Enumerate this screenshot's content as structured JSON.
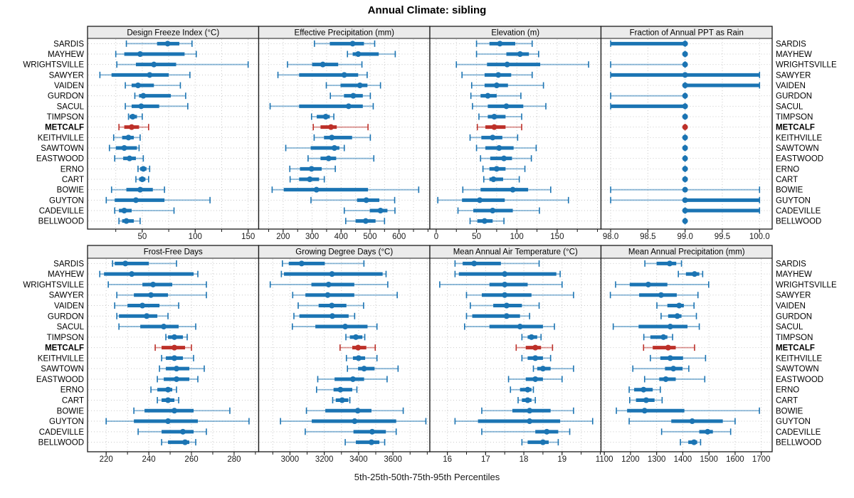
{
  "title": "Annual Climate: sibling",
  "footer": "5th-25th-50th-75th-95th Percentiles",
  "colors": {
    "series": "#1b74b3",
    "highlight": "#bd3029",
    "grid": "#c9c9c9",
    "header_bg": "#ebebeb",
    "border": "#1a1a1a",
    "tick_text": "#1a1a1a"
  },
  "stations": [
    "SARDIS",
    "MAYHEW",
    "WRIGHTSVILLE",
    "SAWYER",
    "VAIDEN",
    "GURDON",
    "SACUL",
    "TIMPSON",
    "METCALF",
    "KEITHVILLE",
    "SAWTOWN",
    "EASTWOOD",
    "ERNO",
    "CART",
    "BOWIE",
    "GUYTON",
    "CADEVILLE",
    "BELLWOOD"
  ],
  "highlight_station": "METCALF",
  "percentile_labels": [
    "5th",
    "25th",
    "50th",
    "75th",
    "95th"
  ],
  "chart_data": [
    {
      "type": "dotplot-percentiles",
      "id": "design-freeze-index",
      "title": "Design Freeze Index (°C)",
      "xlim": [
        -1,
        159.3
      ],
      "ticks": [
        50,
        100,
        150
      ],
      "tick_labels": [
        "50",
        "100",
        "150"
      ],
      "grid": [
        25,
        50,
        75,
        100,
        125,
        150
      ],
      "values": [
        [
          35,
          64,
          74,
          85,
          97
        ],
        [
          25,
          33,
          48,
          90,
          101
        ],
        [
          26,
          44,
          61,
          82,
          150
        ],
        [
          10,
          21,
          57,
          75,
          95
        ],
        [
          34,
          40,
          46,
          61,
          86
        ],
        [
          43,
          47,
          51,
          77,
          91
        ],
        [
          34,
          40,
          49,
          66,
          93
        ],
        [
          37,
          38,
          41,
          45,
          50
        ],
        [
          28,
          33,
          40,
          47,
          56
        ],
        [
          23,
          31,
          37,
          42,
          48
        ],
        [
          19,
          25,
          33,
          45,
          47
        ],
        [
          24,
          32,
          38,
          44,
          51
        ],
        [
          46,
          48,
          51,
          54,
          57
        ],
        [
          44,
          47,
          50,
          53,
          56
        ],
        [
          21,
          35,
          48,
          60,
          71
        ],
        [
          16,
          24,
          44,
          71,
          114
        ],
        [
          24,
          28,
          33,
          40,
          80
        ],
        [
          28,
          31,
          35,
          42,
          48
        ]
      ]
    },
    {
      "type": "dotplot-percentiles",
      "id": "effective-precipitation",
      "title": "Effective Precipitation (mm)",
      "xlim": [
        118,
        704
      ],
      "ticks": [
        200,
        300,
        400,
        500,
        600
      ],
      "tick_labels": [
        "200",
        "300",
        "400",
        "500",
        "600"
      ],
      "grid": [
        150,
        200,
        250,
        300,
        350,
        400,
        450,
        500,
        550,
        600,
        650,
        700
      ],
      "values": [
        [
          308,
          361,
          440,
          479,
          516
        ],
        [
          422,
          440,
          459,
          530,
          587
        ],
        [
          215,
          300,
          337,
          390,
          472
        ],
        [
          182,
          255,
          411,
          459,
          490
        ],
        [
          349,
          398,
          465,
          491,
          536
        ],
        [
          363,
          410,
          442,
          475,
          501
        ],
        [
          155,
          255,
          426,
          475,
          511
        ],
        [
          298,
          316,
          347,
          361,
          375
        ],
        [
          304,
          329,
          365,
          385,
          493
        ],
        [
          307,
          341,
          368,
          438,
          501
        ],
        [
          209,
          295,
          377,
          394,
          411
        ],
        [
          286,
          329,
          357,
          383,
          513
        ],
        [
          223,
          258,
          298,
          333,
          380
        ],
        [
          224,
          255,
          292,
          324,
          342
        ],
        [
          162,
          202,
          315,
          493,
          668
        ],
        [
          296,
          455,
          487,
          532,
          585
        ],
        [
          411,
          499,
          536,
          560,
          586
        ],
        [
          416,
          450,
          485,
          519,
          550
        ]
      ]
    },
    {
      "type": "dotplot-percentiles",
      "id": "elevation",
      "title": "Elevation (m)",
      "xlim": [
        -7,
        203.5
      ],
      "ticks": [
        0,
        50,
        100,
        150
      ],
      "tick_labels": [
        "0",
        "50",
        "100",
        "150"
      ],
      "grid": [
        0,
        25,
        50,
        75,
        100,
        125,
        150,
        175,
        200
      ],
      "values": [
        [
          50,
          66,
          79,
          98,
          119
        ],
        [
          50,
          87,
          104,
          115,
          127
        ],
        [
          25,
          63,
          88,
          129,
          189
        ],
        [
          32,
          60,
          77,
          93,
          119
        ],
        [
          44,
          60,
          75,
          89,
          133
        ],
        [
          43,
          55,
          64,
          75,
          105
        ],
        [
          45,
          64,
          87,
          108,
          136
        ],
        [
          53,
          64,
          72,
          86,
          106
        ],
        [
          51,
          61,
          72,
          86,
          106
        ],
        [
          42,
          56,
          70,
          82,
          101
        ],
        [
          50,
          61,
          78,
          96,
          124
        ],
        [
          55,
          67,
          84,
          94,
          118
        ],
        [
          58,
          66,
          75,
          86,
          110
        ],
        [
          59,
          66,
          71,
          83,
          103
        ],
        [
          33,
          55,
          95,
          114,
          142
        ],
        [
          2,
          32,
          54,
          85,
          164
        ],
        [
          27,
          46,
          70,
          95,
          128
        ],
        [
          42,
          51,
          60,
          70,
          84
        ]
      ]
    },
    {
      "type": "dotplot-percentiles",
      "id": "fraction-ppt-rain",
      "title": "Fraction of Annual PPT as Rain",
      "xlim": [
        97.88,
        100.16
      ],
      "ticks": [
        98.0,
        98.5,
        99.0,
        99.5,
        100.0
      ],
      "tick_labels": [
        "98.0",
        "98.5",
        "99.0",
        "99.5",
        "100.0"
      ],
      "grid": [
        98.0,
        98.5,
        99.0,
        99.5,
        100.0
      ],
      "values": [
        [
          98,
          98,
          99,
          99,
          99
        ],
        [
          99,
          99,
          99,
          99,
          99
        ],
        [
          98,
          99,
          99,
          99,
          99
        ],
        [
          98,
          98,
          99,
          100,
          100
        ],
        [
          99,
          99,
          99,
          100,
          100
        ],
        [
          98,
          99,
          99,
          99,
          99
        ],
        [
          98,
          98,
          99,
          99,
          99
        ],
        [
          99,
          99,
          99,
          99,
          99
        ],
        [
          99,
          99,
          99,
          99,
          99
        ],
        [
          99,
          99,
          99,
          99,
          99
        ],
        [
          99,
          99,
          99,
          99,
          99
        ],
        [
          99,
          99,
          99,
          99,
          99
        ],
        [
          99,
          99,
          99,
          99,
          99
        ],
        [
          99,
          99,
          99,
          99,
          99
        ],
        [
          98,
          99,
          99,
          99,
          100
        ],
        [
          98,
          99,
          99,
          100,
          100
        ],
        [
          99,
          99,
          99,
          100,
          100
        ],
        [
          99,
          99,
          99,
          99,
          99
        ]
      ]
    },
    {
      "type": "dotplot-percentiles",
      "id": "frost-free-days",
      "title": "Frost-Free Days",
      "xlim": [
        211.6,
        291.2
      ],
      "ticks": [
        220,
        240,
        260,
        280
      ],
      "tick_labels": [
        "220",
        "240",
        "260",
        "280"
      ],
      "grid": [
        220,
        230,
        240,
        250,
        260,
        270,
        280,
        290
      ],
      "values": [
        [
          223,
          224,
          229,
          240,
          253
        ],
        [
          217,
          219,
          232,
          261,
          263
        ],
        [
          221,
          237,
          242,
          251,
          267
        ],
        [
          225,
          233,
          241,
          249,
          267
        ],
        [
          224,
          230,
          237,
          245,
          254
        ],
        [
          225,
          226,
          239,
          244,
          249
        ],
        [
          226,
          236,
          247,
          254,
          262
        ],
        [
          248,
          249,
          252,
          256,
          258
        ],
        [
          243,
          246,
          252,
          257,
          260
        ],
        [
          246,
          248,
          252,
          256,
          261
        ],
        [
          245,
          248,
          253,
          259,
          266
        ],
        [
          244,
          247,
          253,
          259,
          263
        ],
        [
          241,
          244,
          249,
          251,
          253
        ],
        [
          244,
          246,
          249,
          252,
          254
        ],
        [
          233,
          238,
          252,
          261,
          278
        ],
        [
          220,
          233,
          249,
          263,
          287
        ],
        [
          235,
          246,
          256,
          261,
          267
        ],
        [
          246,
          249,
          257,
          259,
          262
        ]
      ]
    },
    {
      "type": "dotplot-percentiles",
      "id": "growing-degree-days",
      "title": "Growing Degree Days (°C)",
      "xlim": [
        2822,
        3811
      ],
      "ticks": [
        3000,
        3200,
        3400,
        3600
      ],
      "tick_labels": [
        "3000",
        "3200",
        "3400",
        "3600"
      ],
      "grid": [
        2900,
        3000,
        3100,
        3200,
        3300,
        3400,
        3500,
        3600,
        3700,
        3800
      ],
      "values": [
        [
          2956,
          2993,
          3068,
          3203,
          3431
        ],
        [
          2950,
          2965,
          3245,
          3540,
          3560
        ],
        [
          2885,
          3125,
          3225,
          3375,
          3570
        ],
        [
          3016,
          3090,
          3220,
          3375,
          3625
        ],
        [
          3048,
          3167,
          3244,
          3329,
          3429
        ],
        [
          3023,
          3055,
          3247,
          3342,
          3377
        ],
        [
          3014,
          3148,
          3322,
          3452,
          3507
        ],
        [
          3326,
          3349,
          3384,
          3422,
          3436
        ],
        [
          3292,
          3363,
          3397,
          3445,
          3497
        ],
        [
          3329,
          3367,
          3400,
          3438,
          3507
        ],
        [
          3335,
          3397,
          3432,
          3493,
          3630
        ],
        [
          3162,
          3260,
          3367,
          3432,
          3566
        ],
        [
          3155,
          3254,
          3294,
          3363,
          3390
        ],
        [
          3249,
          3267,
          3304,
          3340,
          3349
        ],
        [
          3096,
          3206,
          3395,
          3475,
          3660
        ],
        [
          2945,
          3127,
          3377,
          3619,
          3792
        ],
        [
          3089,
          3370,
          3479,
          3559,
          3619
        ],
        [
          3322,
          3384,
          3475,
          3521,
          3552
        ]
      ]
    },
    {
      "type": "dotplot-percentiles",
      "id": "mean-annual-air-temperature",
      "title": "Mean Annual Air Temperature (°C)",
      "xlim": [
        15.56,
        20.0
      ],
      "ticks": [
        16,
        17,
        18,
        19
      ],
      "tick_labels": [
        "16",
        "17",
        "18",
        "19"
      ],
      "grid": [
        16,
        16.5,
        17,
        17.5,
        18,
        18.5,
        19,
        19.5,
        20
      ],
      "values": [
        [
          16.2,
          16.4,
          16.7,
          17.4,
          18.4
        ],
        [
          16.2,
          16.3,
          17.5,
          18.85,
          18.95
        ],
        [
          15.8,
          17.1,
          17.5,
          18.1,
          19.0
        ],
        [
          16.5,
          16.9,
          17.5,
          18.2,
          19.3
        ],
        [
          16.6,
          17.2,
          17.55,
          17.95,
          18.4
        ],
        [
          16.5,
          16.65,
          17.55,
          17.9,
          18.15
        ],
        [
          16.45,
          17.1,
          17.9,
          18.5,
          18.8
        ],
        [
          17.95,
          18.1,
          18.2,
          18.35,
          18.45
        ],
        [
          17.8,
          18.05,
          18.3,
          18.45,
          18.75
        ],
        [
          17.95,
          18.1,
          18.3,
          18.5,
          18.7
        ],
        [
          18.25,
          18.35,
          18.5,
          18.7,
          19.3
        ],
        [
          17.6,
          18.05,
          18.3,
          18.5,
          19.0
        ],
        [
          17.65,
          17.9,
          18.1,
          18.2,
          18.25
        ],
        [
          17.85,
          17.95,
          18.1,
          18.2,
          18.3
        ],
        [
          16.9,
          17.7,
          18.15,
          18.7,
          19.3
        ],
        [
          16.2,
          16.8,
          18.15,
          18.95,
          19.8
        ],
        [
          16.9,
          18.3,
          18.6,
          18.9,
          19.2
        ],
        [
          17.95,
          18.1,
          18.5,
          18.65,
          18.9
        ]
      ]
    },
    {
      "type": "dotplot-percentiles",
      "id": "mean-annual-precipitation",
      "title": "Mean Annual Precipitation (mm)",
      "xlim": [
        1090,
        1739
      ],
      "ticks": [
        1100,
        1200,
        1300,
        1400,
        1500,
        1600,
        1700
      ],
      "tick_labels": [
        "1100",
        "1200",
        "1300",
        "1400",
        "1500",
        "1600",
        "1700"
      ],
      "grid": [
        1100,
        1200,
        1300,
        1400,
        1500,
        1600,
        1700
      ],
      "values": [
        [
          1255,
          1300,
          1350,
          1375,
          1395
        ],
        [
          1383,
          1412,
          1445,
          1463,
          1476
        ],
        [
          1143,
          1197,
          1268,
          1341,
          1499
        ],
        [
          1123,
          1233,
          1317,
          1377,
          1458
        ],
        [
          1301,
          1341,
          1386,
          1404,
          1443
        ],
        [
          1317,
          1344,
          1379,
          1395,
          1452
        ],
        [
          1134,
          1231,
          1352,
          1418,
          1463
        ],
        [
          1251,
          1276,
          1326,
          1341,
          1361
        ],
        [
          1250,
          1285,
          1344,
          1373,
          1445
        ],
        [
          1276,
          1314,
          1352,
          1401,
          1487
        ],
        [
          1209,
          1332,
          1364,
          1399,
          1423
        ],
        [
          1254,
          1310,
          1335,
          1373,
          1484
        ],
        [
          1195,
          1214,
          1250,
          1285,
          1314
        ],
        [
          1197,
          1221,
          1260,
          1292,
          1321
        ],
        [
          1146,
          1187,
          1254,
          1406,
          1693
        ],
        [
          1195,
          1356,
          1436,
          1553,
          1600
        ],
        [
          1319,
          1463,
          1495,
          1515,
          1583
        ],
        [
          1391,
          1421,
          1443,
          1455,
          1468
        ]
      ]
    }
  ]
}
